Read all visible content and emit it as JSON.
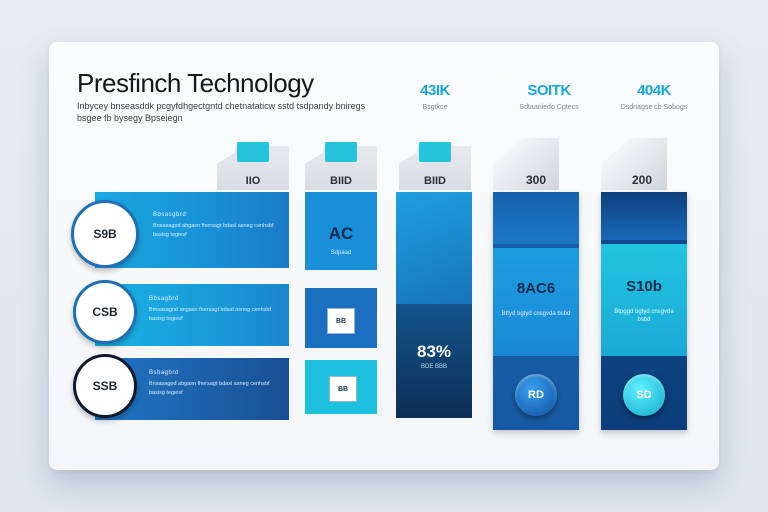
{
  "header": {
    "title": "Presfinch Technology",
    "subtitle": "Inbycey bnseasddk pcgyfdhgectgntd chetnataticw sstd tsdpandy bniregs bsgee fb bysegy Bpseiegn"
  },
  "columns": [
    {
      "value": "43IK",
      "caption": "Bsgtkce"
    },
    {
      "value": "SOITK",
      "caption": "Sdtaaniedo Cptecs"
    },
    {
      "value": "404K",
      "caption": "Dsdnagse cb Sobogs"
    }
  ],
  "rows": [
    {
      "circle": "S9B",
      "heading": "Bbsasgbrd",
      "text": "Bnsasagpd abgasn fhersagt bdasl asneg cenhsbf basisg tegiesf"
    },
    {
      "circle": "CSB",
      "heading": "Bbsagbrd",
      "text": "Bmsasagnd angasn fhersagt bdasl asneg cenhsbf basisg tegiesf"
    },
    {
      "circle": "SSB",
      "heading": "Bsbagbrd",
      "text": "Bnsasagpd abgasn fhersagt bdasl asneg cenhsbf basisg tegiesf"
    }
  ],
  "tabs": [
    {
      "num": "IIO"
    },
    {
      "num": "BIID"
    },
    {
      "num": "BIID"
    },
    {
      "num": "300"
    },
    {
      "num": "200"
    }
  ],
  "panels": {
    "ac": {
      "label": "AC",
      "caption": "Sdpaad"
    },
    "cube1": "BB",
    "cube2": "BB",
    "tall": {
      "label": "83%",
      "caption": "BDE BBB"
    },
    "p4": {
      "label": "8AC6",
      "caption": "Bttyd bgtyd cnsgvda bsbd"
    },
    "p5": {
      "label": "S10b",
      "caption": "Btpggd bgtyd cnsgvda bsbd"
    },
    "badge4": "RD",
    "badge5": "SD"
  },
  "colors": {
    "accent": "#17a7d8",
    "deep": "#0d3a6e",
    "mid": "#1f76c2",
    "cyan": "#1fbfd7"
  }
}
